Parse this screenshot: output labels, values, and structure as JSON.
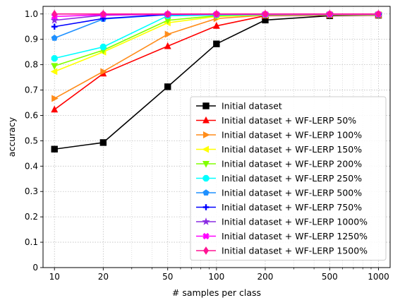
{
  "chart_data": {
    "type": "line",
    "title": "",
    "xlabel": "# samples per class",
    "ylabel": "accuracy",
    "xscale": "log",
    "x": [
      10,
      20,
      50,
      100,
      200,
      500,
      1000
    ],
    "x_tick_labels": [
      "10",
      "20",
      "50",
      "100",
      "200",
      "500",
      "1000"
    ],
    "xlim": [
      8.5,
      1180
    ],
    "ylim": [
      0,
      1.03
    ],
    "y_ticks": [
      0,
      0.1,
      0.2,
      0.3,
      0.4,
      0.5,
      0.6,
      0.7,
      0.8,
      0.9,
      1.0
    ],
    "y_tick_labels": [
      "0",
      "0.1",
      "0.2",
      "0.3",
      "0.4",
      "0.5",
      "0.6",
      "0.7",
      "0.8",
      "0.9",
      "1.0"
    ],
    "grid": true,
    "legend_position": "lower-right",
    "series": [
      {
        "name": "Initial dataset",
        "color": "#000000",
        "marker": "square",
        "values": [
          0.467,
          0.493,
          0.713,
          0.882,
          0.976,
          0.993,
          0.995
        ]
      },
      {
        "name": "Initial dataset + WF-LERP 50%",
        "color": "#ff0000",
        "marker": "triangle-up",
        "values": [
          0.623,
          0.765,
          0.873,
          0.953,
          0.993,
          0.995,
          0.995
        ]
      },
      {
        "name": "Initial dataset + WF-LERP 100%",
        "color": "#ff8c1a",
        "marker": "triangle-right",
        "values": [
          0.667,
          0.773,
          0.92,
          0.982,
          0.995,
          0.996,
          0.996
        ]
      },
      {
        "name": "Initial dataset + WF-LERP 150%",
        "color": "#ffff00",
        "marker": "triangle-left",
        "values": [
          0.773,
          0.85,
          0.965,
          0.99,
          0.996,
          0.997,
          0.997
        ]
      },
      {
        "name": "Initial dataset + WF-LERP 200%",
        "color": "#80ff00",
        "marker": "triangle-down",
        "values": [
          0.795,
          0.857,
          0.975,
          0.993,
          0.997,
          0.997,
          0.997
        ]
      },
      {
        "name": "Initial dataset + WF-LERP 250%",
        "color": "#00ffff",
        "marker": "octagon",
        "values": [
          0.825,
          0.87,
          0.993,
          0.996,
          0.997,
          0.998,
          0.998
        ]
      },
      {
        "name": "Initial dataset + WF-LERP 500%",
        "color": "#1e90ff",
        "marker": "pentagon",
        "values": [
          0.905,
          0.98,
          0.997,
          0.998,
          0.998,
          0.998,
          0.998
        ]
      },
      {
        "name": "Initial dataset + WF-LERP 750%",
        "color": "#0000ff",
        "marker": "plus",
        "values": [
          0.95,
          0.982,
          0.998,
          0.999,
          0.999,
          0.999,
          0.999
        ]
      },
      {
        "name": "Initial dataset + WF-LERP 1000%",
        "color": "#8a2be2",
        "marker": "star",
        "values": [
          0.975,
          0.995,
          0.999,
          0.999,
          0.999,
          0.999,
          0.999
        ]
      },
      {
        "name": "Initial dataset + WF-LERP 1250%",
        "color": "#ff00ff",
        "marker": "x",
        "values": [
          0.99,
          0.997,
          0.999,
          0.999,
          0.999,
          0.999,
          0.999
        ]
      },
      {
        "name": "Initial dataset + WF-LERP 1500%",
        "color": "#ff1493",
        "marker": "diamond",
        "values": [
          1.0,
          1.0,
          1.0,
          1.0,
          1.0,
          1.0,
          1.0
        ]
      }
    ]
  }
}
